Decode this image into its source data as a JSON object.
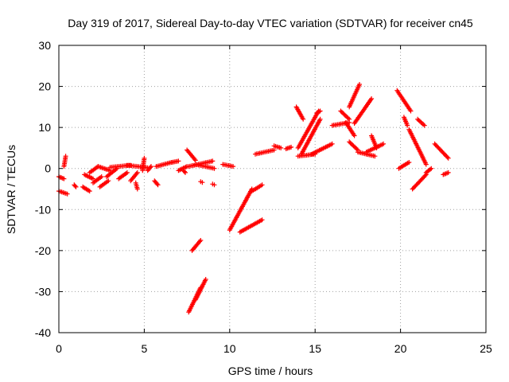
{
  "chart_data": {
    "type": "scatter",
    "title": "Day 319 of 2017, Sidereal Day-to-day VTEC variation (SDTVAR) for receiver cn45",
    "xlabel": "GPS time / hours",
    "ylabel": "SDTVAR / TECUs",
    "xlim": [
      0,
      25
    ],
    "ylim": [
      -40,
      30
    ],
    "xticks": [
      0,
      5,
      10,
      15,
      20,
      25
    ],
    "yticks": [
      -40,
      -30,
      -20,
      -10,
      0,
      10,
      20,
      30
    ],
    "xtick_labels": [
      "0",
      "5",
      "10",
      "15",
      "20",
      "25"
    ],
    "ytick_labels": [
      "-40",
      "-30",
      "-20",
      "-10",
      "0",
      "10",
      "20",
      "30"
    ],
    "grid": true,
    "marker": "plus",
    "color": "#ff0000",
    "segments": [
      {
        "x": [
          0.0,
          0.3
        ],
        "y": [
          -2.0,
          -2.5
        ]
      },
      {
        "x": [
          0.0,
          0.5
        ],
        "y": [
          -5.5,
          -6.2
        ]
      },
      {
        "x": [
          0.3,
          0.4
        ],
        "y": [
          0.5,
          3.0
        ]
      },
      {
        "x": [
          0.9,
          1.0
        ],
        "y": [
          -4.0,
          -4.5
        ]
      },
      {
        "x": [
          1.4,
          1.8
        ],
        "y": [
          -4.5,
          -5.5
        ]
      },
      {
        "x": [
          1.5,
          2.0
        ],
        "y": [
          -1.5,
          -2.5
        ]
      },
      {
        "x": [
          1.8,
          2.3
        ],
        "y": [
          -1.0,
          0.5
        ]
      },
      {
        "x": [
          2.0,
          2.5
        ],
        "y": [
          -3.5,
          -2.0
        ]
      },
      {
        "x": [
          2.4,
          2.9
        ],
        "y": [
          -4.5,
          -3.0
        ]
      },
      {
        "x": [
          2.3,
          3.0
        ],
        "y": [
          0.5,
          -0.5
        ]
      },
      {
        "x": [
          2.8,
          3.4
        ],
        "y": [
          -2.0,
          0.0
        ]
      },
      {
        "x": [
          3.0,
          4.2
        ],
        "y": [
          0.3,
          0.8
        ]
      },
      {
        "x": [
          3.5,
          4.0
        ],
        "y": [
          -2.5,
          -1.0
        ]
      },
      {
        "x": [
          4.0,
          5.2
        ],
        "y": [
          0.8,
          0.2
        ]
      },
      {
        "x": [
          4.2,
          4.6
        ],
        "y": [
          -3.0,
          -1.0
        ]
      },
      {
        "x": [
          4.5,
          4.6
        ],
        "y": [
          -3.5,
          -5.0
        ]
      },
      {
        "x": [
          4.9,
          5.0
        ],
        "y": [
          -0.5,
          2.5
        ]
      },
      {
        "x": [
          5.2,
          5.4
        ],
        "y": [
          -0.5,
          0.5
        ]
      },
      {
        "x": [
          5.6,
          5.8
        ],
        "y": [
          -3.0,
          -4.0
        ]
      },
      {
        "x": [
          5.7,
          6.6
        ],
        "y": [
          0.5,
          1.5
        ]
      },
      {
        "x": [
          6.6,
          7.0
        ],
        "y": [
          1.5,
          1.8
        ]
      },
      {
        "x": [
          7.0,
          7.5
        ],
        "y": [
          -0.5,
          0.5
        ]
      },
      {
        "x": [
          7.3,
          7.4
        ],
        "y": [
          -0.5,
          -1.0
        ]
      },
      {
        "x": [
          7.5,
          8.0
        ],
        "y": [
          4.5,
          2.0
        ]
      },
      {
        "x": [
          7.6,
          9.0
        ],
        "y": [
          0.5,
          1.8
        ]
      },
      {
        "x": [
          8.0,
          9.1
        ],
        "y": [
          1.0,
          0.0
        ]
      },
      {
        "x": [
          8.3,
          8.4
        ],
        "y": [
          -3.2,
          -3.4
        ]
      },
      {
        "x": [
          9.0,
          9.1
        ],
        "y": [
          -3.8,
          -4.0
        ]
      },
      {
        "x": [
          7.6,
          8.3
        ],
        "y": [
          -35.0,
          -29.0
        ]
      },
      {
        "x": [
          8.0,
          8.6
        ],
        "y": [
          -32.0,
          -27.0
        ]
      },
      {
        "x": [
          7.8,
          8.3
        ],
        "y": [
          -20.0,
          -17.5
        ]
      },
      {
        "x": [
          9.6,
          10.2
        ],
        "y": [
          1.0,
          0.5
        ]
      },
      {
        "x": [
          10.0,
          11.3
        ],
        "y": [
          -15.0,
          -5.0
        ]
      },
      {
        "x": [
          10.6,
          11.9
        ],
        "y": [
          -15.5,
          -12.5
        ]
      },
      {
        "x": [
          11.3,
          11.9
        ],
        "y": [
          -5.5,
          -4.0
        ]
      },
      {
        "x": [
          11.5,
          12.6
        ],
        "y": [
          3.5,
          4.5
        ]
      },
      {
        "x": [
          12.6,
          13.0
        ],
        "y": [
          5.5,
          5.0
        ]
      },
      {
        "x": [
          13.3,
          13.6
        ],
        "y": [
          4.8,
          5.2
        ]
      },
      {
        "x": [
          13.9,
          14.3
        ],
        "y": [
          15.0,
          12.0
        ]
      },
      {
        "x": [
          14.0,
          15.2
        ],
        "y": [
          5.0,
          14.0
        ]
      },
      {
        "x": [
          14.2,
          15.3
        ],
        "y": [
          3.5,
          12.0
        ]
      },
      {
        "x": [
          14.0,
          15.0
        ],
        "y": [
          3.0,
          3.5
        ]
      },
      {
        "x": [
          14.8,
          16.0
        ],
        "y": [
          3.5,
          6.0
        ]
      },
      {
        "x": [
          15.1,
          15.3
        ],
        "y": [
          13.5,
          14.0
        ]
      },
      {
        "x": [
          16.0,
          17.0
        ],
        "y": [
          10.5,
          11.2
        ]
      },
      {
        "x": [
          16.5,
          17.0
        ],
        "y": [
          14.0,
          12.0
        ]
      },
      {
        "x": [
          16.8,
          17.3
        ],
        "y": [
          11.2,
          8.0
        ]
      },
      {
        "x": [
          17.0,
          17.6
        ],
        "y": [
          15.0,
          20.5
        ]
      },
      {
        "x": [
          17.0,
          17.5
        ],
        "y": [
          6.5,
          4.5
        ]
      },
      {
        "x": [
          17.3,
          18.3
        ],
        "y": [
          11.0,
          17.0
        ]
      },
      {
        "x": [
          17.5,
          18.5
        ],
        "y": [
          4.0,
          3.0
        ]
      },
      {
        "x": [
          18.0,
          19.0
        ],
        "y": [
          4.0,
          6.0
        ]
      },
      {
        "x": [
          18.3,
          18.6
        ],
        "y": [
          8.0,
          5.0
        ]
      },
      {
        "x": [
          19.8,
          20.6
        ],
        "y": [
          19.0,
          14.0
        ]
      },
      {
        "x": [
          19.9,
          20.5
        ],
        "y": [
          0.0,
          1.5
        ]
      },
      {
        "x": [
          20.2,
          20.4
        ],
        "y": [
          12.5,
          10.5
        ]
      },
      {
        "x": [
          20.5,
          21.5
        ],
        "y": [
          9.5,
          1.0
        ]
      },
      {
        "x": [
          20.7,
          21.5
        ],
        "y": [
          -5.0,
          -1.5
        ]
      },
      {
        "x": [
          21.5,
          21.8
        ],
        "y": [
          -1.0,
          0.0
        ]
      },
      {
        "x": [
          21.0,
          21.4
        ],
        "y": [
          12.0,
          10.5
        ]
      },
      {
        "x": [
          22.0,
          22.8
        ],
        "y": [
          6.0,
          2.5
        ]
      },
      {
        "x": [
          22.5,
          22.8
        ],
        "y": [
          -1.5,
          -1.0
        ]
      }
    ]
  }
}
